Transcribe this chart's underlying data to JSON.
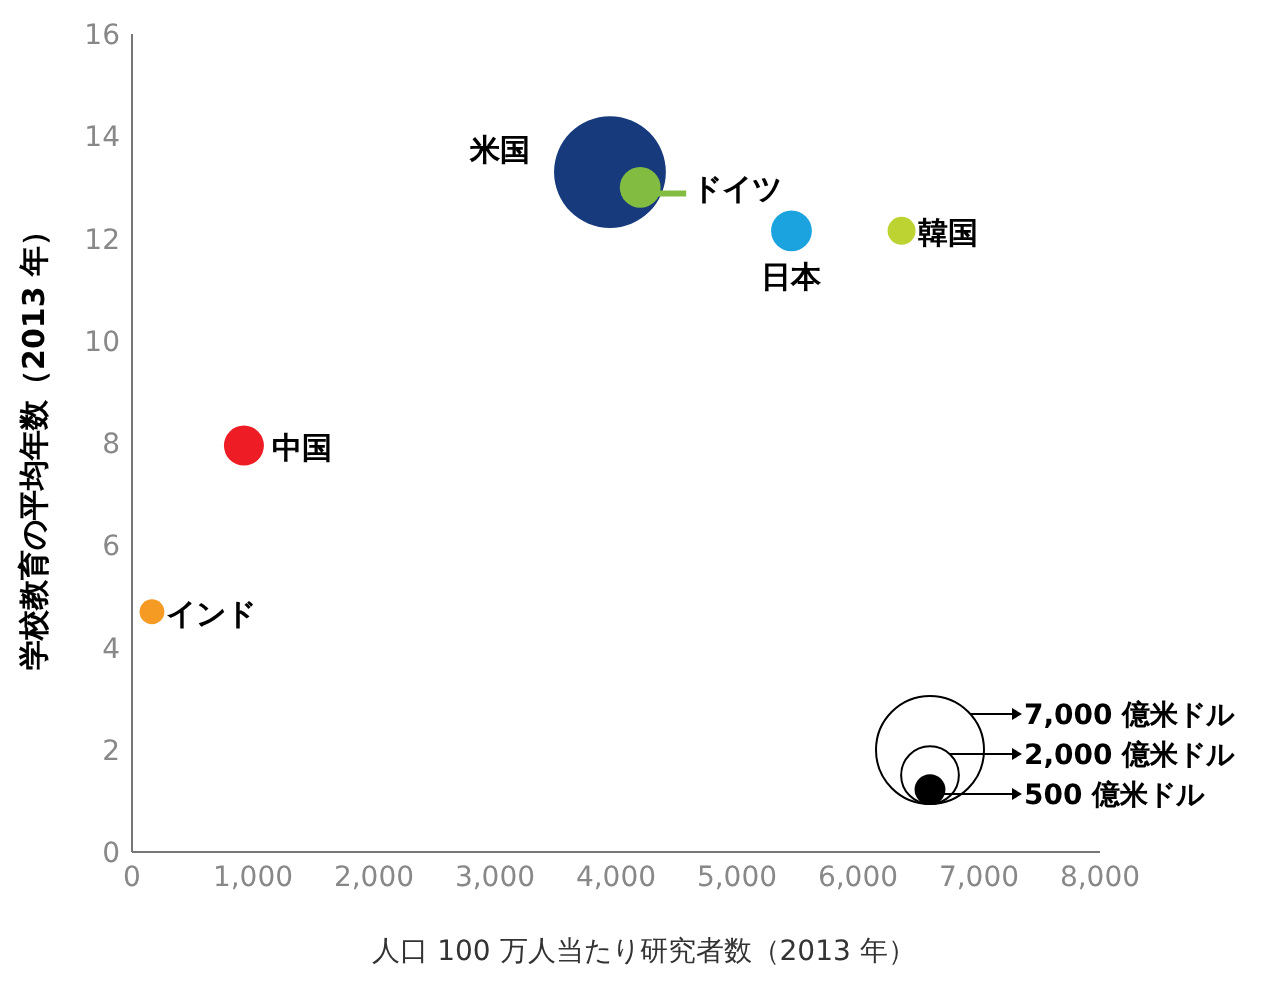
{
  "chart_data": {
    "type": "bubble",
    "xlabel": "人口 100 万人当たり研究者数（2013 年）",
    "ylabel": "学校教育の平均年数（2013 年）",
    "xlim": [
      0,
      8000
    ],
    "ylim": [
      0,
      16
    ],
    "xticks": [
      {
        "value": 0,
        "label": "0"
      },
      {
        "value": 1000,
        "label": "1,000"
      },
      {
        "value": 2000,
        "label": "2,000"
      },
      {
        "value": 3000,
        "label": "3,000"
      },
      {
        "value": 4000,
        "label": "4,000"
      },
      {
        "value": 5000,
        "label": "5,000"
      },
      {
        "value": 6000,
        "label": "6,000"
      },
      {
        "value": 7000,
        "label": "7,000"
      },
      {
        "value": 8000,
        "label": "8,000"
      }
    ],
    "yticks": [
      0,
      2,
      4,
      6,
      8,
      10,
      12,
      14,
      16
    ],
    "size_legend": [
      {
        "value": 7000,
        "label": "7,000 億米ドル"
      },
      {
        "value": 2000,
        "label": "2,000 億米ドル"
      },
      {
        "value": 500,
        "label": "500 億米ドル"
      }
    ],
    "series": [
      {
        "name": "米国",
        "color": "#163a7c",
        "x": [
          3950
        ],
        "values": [
          13.3
        ],
        "sizes": [
          7500
        ]
      },
      {
        "name": "ドイツ",
        "color": "#82bc41",
        "x": [
          4200
        ],
        "values": [
          13.0
        ],
        "sizes": [
          1000
        ]
      },
      {
        "name": "日本",
        "color": "#1ba3e0",
        "x": [
          5450
        ],
        "values": [
          12.15
        ],
        "sizes": [
          1000
        ]
      },
      {
        "name": "韓国",
        "color": "#bcd331",
        "x": [
          6360
        ],
        "values": [
          12.15
        ],
        "sizes": [
          470
        ]
      },
      {
        "name": "中国",
        "color": "#ee1c25",
        "x": [
          925
        ],
        "values": [
          7.95
        ],
        "sizes": [
          960
        ]
      },
      {
        "name": "インド",
        "color": "#f59a23",
        "x": [
          165
        ],
        "values": [
          4.7
        ],
        "sizes": [
          370
        ]
      }
    ]
  }
}
